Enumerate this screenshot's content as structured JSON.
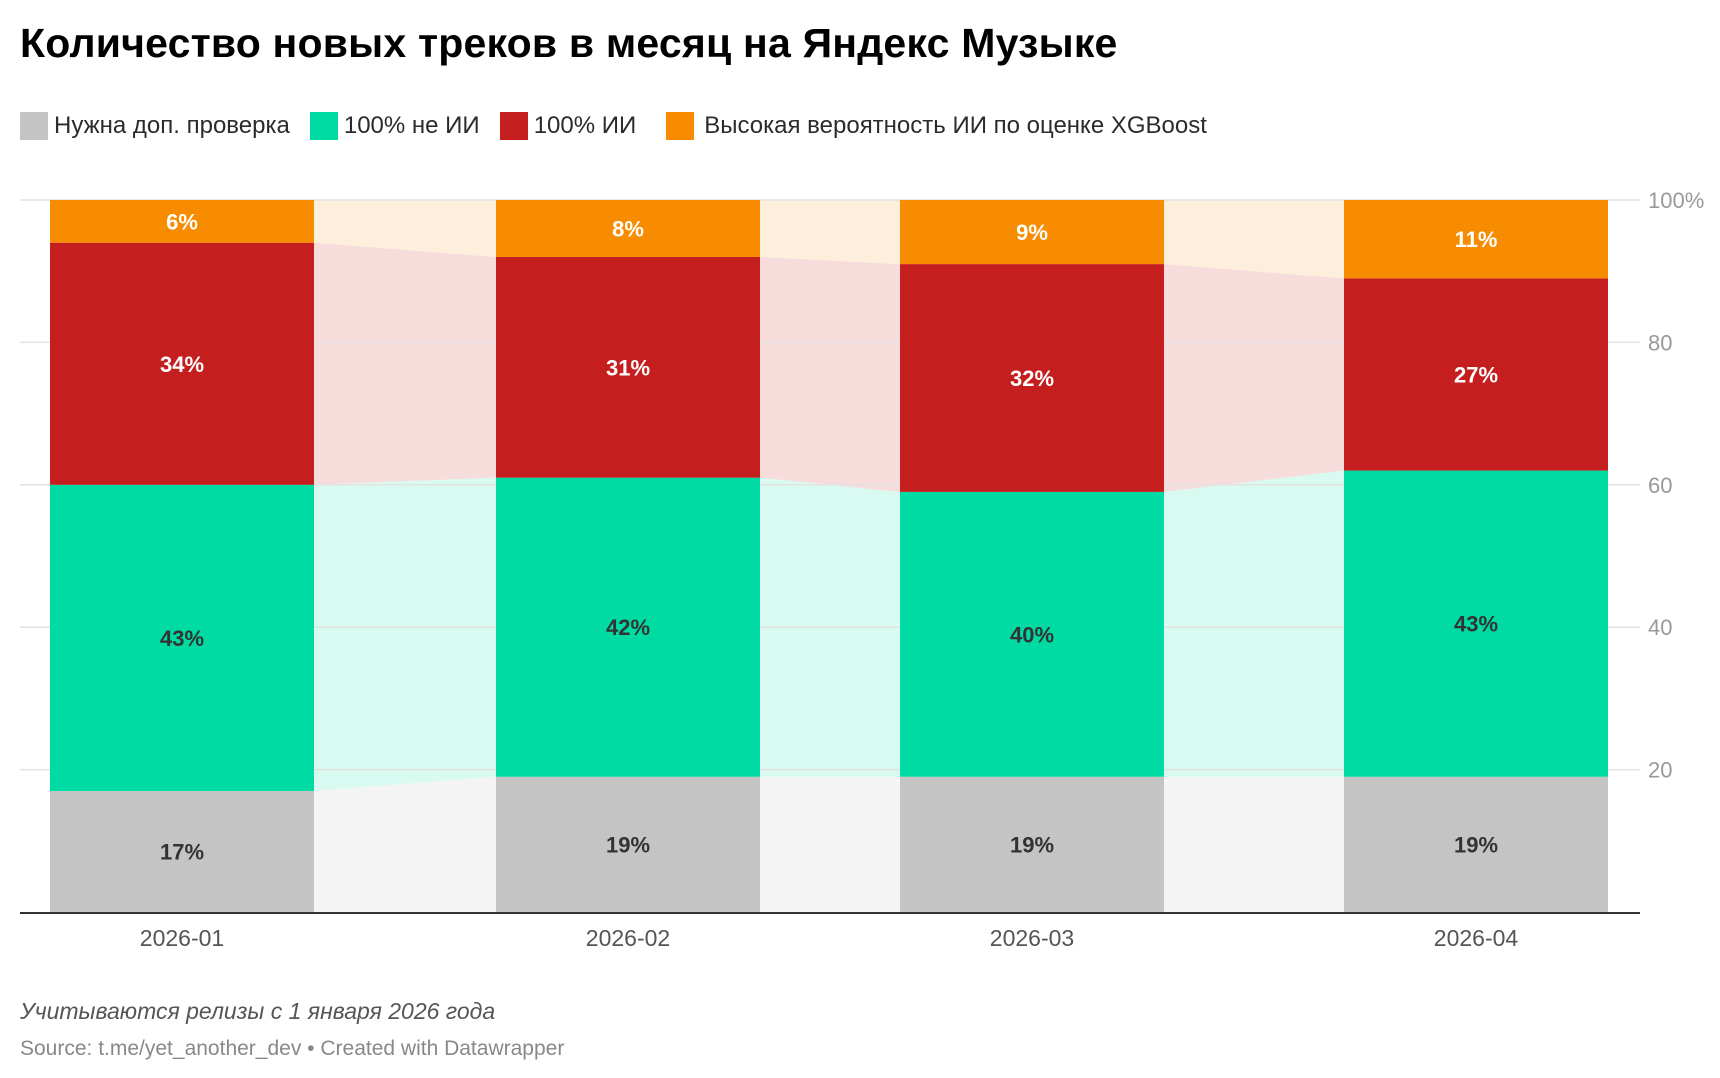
{
  "title": "Количество новых треков в месяц на Яндекс Музыке",
  "legend": [
    {
      "label": "Нужна доп. проверка",
      "color": "#c4c4c4"
    },
    {
      "label": "100% не ИИ",
      "color": "#00dba4"
    },
    {
      "label": "100% ИИ",
      "color": "#c41e1e"
    },
    {
      "label": "Высокая вероятность ИИ по оценке XGBoost",
      "color": "#f88c00"
    }
  ],
  "notes": "Учитываются релизы с 1 января 2026 года",
  "source": "Source: t.me/yet_another_dev • Created with Datawrapper",
  "chart_data": {
    "type": "bar",
    "stacked": true,
    "categories": [
      "2026-01",
      "2026-02",
      "2026-03",
      "2026-04"
    ],
    "series": [
      {
        "name": "Нужна доп. проверка",
        "color": "#c4c4c4",
        "band_color": "#f4f4f4",
        "values": [
          17,
          19,
          19,
          19
        ],
        "labels": [
          "17%",
          "19%",
          "19%",
          "19%"
        ],
        "label_color": "#333333"
      },
      {
        "name": "100% не ИИ",
        "color": "#00dba4",
        "band_color": "#d9faf0",
        "values": [
          43,
          42,
          40,
          43
        ],
        "labels": [
          "43%",
          "42%",
          "40%",
          "43%"
        ],
        "label_color": "#333333"
      },
      {
        "name": "100% ИИ",
        "color": "#c41e1e",
        "band_color": "#f7dcdc",
        "values": [
          34,
          31,
          32,
          27
        ],
        "labels": [
          "34%",
          "31%",
          "32%",
          "27%"
        ],
        "label_color": "#ffffff"
      },
      {
        "name": "Высокая вероятность ИИ по оценке XGBoost",
        "color": "#f88c00",
        "band_color": "#feefdc",
        "values": [
          6,
          8,
          9,
          11
        ],
        "labels": [
          "6%",
          "8%",
          "9%",
          "11%"
        ],
        "label_color": "#ffffff"
      }
    ],
    "ylim": [
      0,
      100
    ],
    "yticks": [
      20,
      40,
      60,
      80,
      100
    ],
    "ytick_labels": [
      "20",
      "40",
      "60",
      "80",
      "100%"
    ],
    "grid": true,
    "y_axis_side": "right",
    "legend_position": "top-left"
  }
}
